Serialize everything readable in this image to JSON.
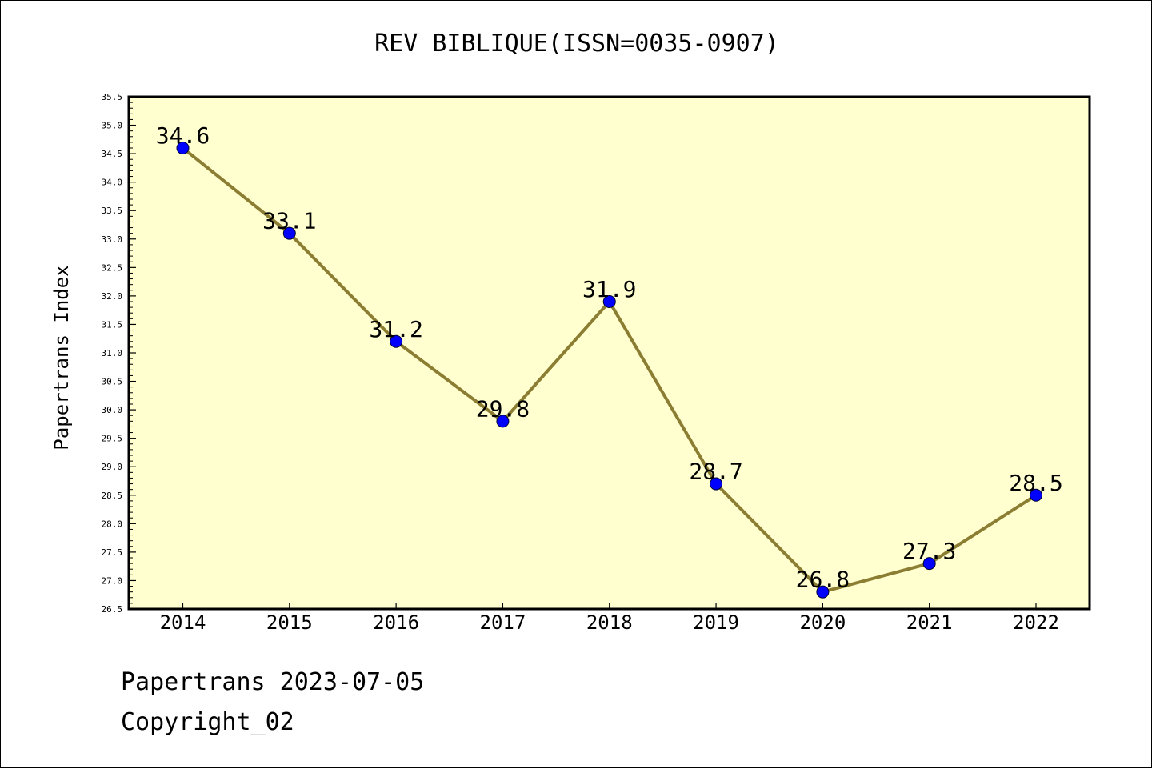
{
  "chart_data": {
    "type": "line",
    "title": "REV BIBLIQUE(ISSN=0035-0907)",
    "xlabel": "",
    "ylabel": "Papertrans Index",
    "categories": [
      "2014",
      "2015",
      "2016",
      "2017",
      "2018",
      "2019",
      "2020",
      "2021",
      "2022"
    ],
    "series": [
      {
        "values": [
          34.6,
          33.1,
          31.2,
          29.8,
          31.9,
          28.7,
          26.8,
          27.3,
          28.5
        ],
        "labels": [
          "34.6",
          "33.1",
          "31.2",
          "29.8",
          "31.9",
          "28.7",
          "26.8",
          "27.3",
          "28.5"
        ]
      }
    ],
    "ylim": [
      26.5,
      35.5
    ],
    "yticks": [
      "26.5",
      "27.0",
      "27.5",
      "28.0",
      "28.5",
      "29.0",
      "29.5",
      "30.0",
      "30.5",
      "31.0",
      "31.5",
      "32.0",
      "32.5",
      "33.0",
      "33.5",
      "34.0",
      "34.5",
      "35.0",
      "35.5"
    ],
    "grid": false,
    "colors": {
      "plot_background": "#ffffd0",
      "line": "#8b7d32",
      "marker": "#0000ff"
    }
  },
  "footer": {
    "date_line": "Papertrans 2023-07-05",
    "copyright_line": "Copyright_02"
  }
}
